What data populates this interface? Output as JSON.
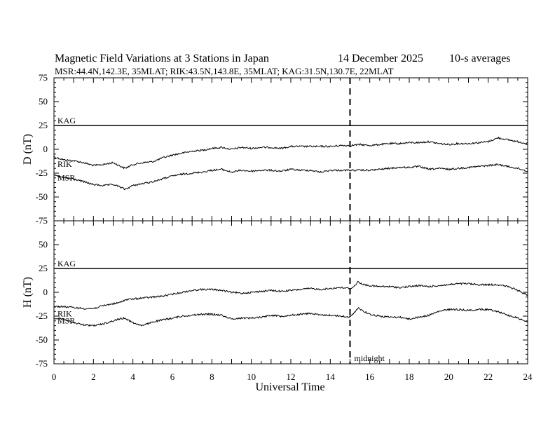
{
  "header": {
    "title": "Magnetic Field Variations at 3 Stations in Japan",
    "date_day_month": "14 December",
    "date_year": "2025",
    "averaging": "10-s averages",
    "stations_line": "MSR:44.4N,142.3E, 35MLAT;  RIK:43.5N,143.8E, 35MLAT;  KAG:31.5N,130.7E, 22MLAT"
  },
  "chart_data": [
    {
      "type": "line",
      "panel": "D",
      "ylabel": "D (nT)",
      "ylim": [
        -75,
        75
      ],
      "yticks": [
        "75",
        "50",
        "25",
        "0",
        "-25",
        "-50",
        "-75"
      ],
      "xlim": [
        0,
        24
      ],
      "series": [
        {
          "name": "KAG",
          "x": [
            0,
            24
          ],
          "values": [
            25,
            25
          ]
        },
        {
          "name": "RIK",
          "x": [
            0,
            0.5,
            1,
            1.5,
            2,
            2.5,
            3,
            3.3,
            3.6,
            4,
            4.5,
            5,
            5.5,
            6,
            6.5,
            7,
            7.5,
            8,
            8.5,
            9,
            9.5,
            10,
            10.5,
            11,
            11.5,
            12,
            12.5,
            13,
            13.5,
            14,
            14.5,
            15,
            15.5,
            16,
            16.5,
            17,
            17.5,
            18,
            18.5,
            19,
            19.5,
            20,
            20.5,
            21,
            21.5,
            22,
            22.5,
            23,
            23.5,
            24
          ],
          "values": [
            -8,
            -11,
            -12,
            -14,
            -17,
            -16,
            -14,
            -17,
            -20,
            -16,
            -14,
            -13,
            -9,
            -6,
            -4,
            -2,
            -1,
            1,
            2,
            0,
            2,
            1,
            2,
            2,
            1,
            3,
            3,
            3,
            3,
            3,
            4,
            4,
            5,
            4,
            5,
            6,
            6,
            7,
            7,
            8,
            6,
            5,
            6,
            6,
            7,
            8,
            12,
            10,
            8,
            6
          ]
        },
        {
          "name": "MSR",
          "x": [
            0,
            0.5,
            1,
            1.5,
            2,
            2.5,
            3,
            3.3,
            3.6,
            4,
            4.5,
            5,
            5.5,
            6,
            6.5,
            7,
            7.5,
            8,
            8.5,
            9,
            9.5,
            10,
            10.5,
            11,
            11.5,
            12,
            12.5,
            13,
            13.5,
            14,
            14.5,
            15,
            15.5,
            16,
            16.5,
            17,
            17.5,
            18,
            18.5,
            19,
            19.5,
            20,
            20.5,
            21,
            21.5,
            22,
            22.5,
            23,
            23.5,
            24
          ],
          "values": [
            -27,
            -30,
            -31,
            -34,
            -37,
            -38,
            -37,
            -39,
            -42,
            -38,
            -36,
            -34,
            -31,
            -28,
            -26,
            -25,
            -24,
            -22,
            -21,
            -24,
            -22,
            -23,
            -22,
            -22,
            -23,
            -21,
            -22,
            -22,
            -24,
            -22,
            -22,
            -22,
            -22,
            -22,
            -21,
            -20,
            -19,
            -19,
            -18,
            -21,
            -20,
            -21,
            -20,
            -19,
            -18,
            -17,
            -16,
            -18,
            -20,
            -23
          ]
        }
      ]
    },
    {
      "type": "line",
      "panel": "H",
      "ylabel": "H (nT)",
      "ylim": [
        -75,
        75
      ],
      "yticks": [
        "75",
        "50",
        "25",
        "0",
        "-25",
        "-50",
        "-75"
      ],
      "xlim": [
        0,
        24
      ],
      "xticks": [
        "0",
        "2",
        "4",
        "6",
        "8",
        "10",
        "12",
        "14",
        "16",
        "18",
        "20",
        "22",
        "24"
      ],
      "xlabel": "Universal Time",
      "series": [
        {
          "name": "KAG",
          "x": [
            0,
            24
          ],
          "values": [
            25,
            25
          ]
        },
        {
          "name": "RIK",
          "x": [
            0,
            0.5,
            1,
            1.5,
            2,
            2.5,
            3,
            3.3,
            3.6,
            4,
            4.5,
            5,
            5.5,
            6,
            6.5,
            7,
            7.5,
            8,
            8.5,
            9,
            9.5,
            10,
            10.5,
            11,
            11.5,
            12,
            12.5,
            13,
            13.5,
            14,
            14.5,
            15,
            15.2,
            15.4,
            15.7,
            16,
            16.5,
            17,
            17.5,
            18,
            18.5,
            19,
            19.5,
            20,
            20.5,
            21,
            21.5,
            22,
            22.5,
            23,
            23.5,
            24
          ],
          "values": [
            -15,
            -15,
            -16,
            -17,
            -17,
            -14,
            -12,
            -11,
            -8,
            -7,
            -6,
            -5,
            -4,
            -2,
            0,
            2,
            3,
            3,
            2,
            0,
            -1,
            0,
            1,
            2,
            1,
            2,
            3,
            4,
            3,
            4,
            5,
            4,
            6,
            11,
            8,
            7,
            6,
            6,
            5,
            6,
            7,
            6,
            7,
            8,
            9,
            9,
            8,
            8,
            8,
            6,
            2,
            -3
          ]
        },
        {
          "name": "MSR",
          "x": [
            0,
            0.5,
            1,
            1.5,
            2,
            2.5,
            3,
            3.3,
            3.6,
            4,
            4.5,
            5,
            5.5,
            6,
            6.5,
            7,
            7.5,
            8,
            8.5,
            9,
            9.5,
            10,
            10.5,
            11,
            11.5,
            12,
            12.5,
            13,
            13.5,
            14,
            14.5,
            15,
            15.2,
            15.4,
            15.7,
            16,
            16.5,
            17,
            17.5,
            18,
            18.5,
            19,
            19.5,
            20,
            20.5,
            21,
            21.5,
            22,
            22.5,
            23,
            23.5,
            24
          ],
          "values": [
            -27,
            -28,
            -32,
            -34,
            -35,
            -33,
            -30,
            -28,
            -27,
            -32,
            -35,
            -31,
            -29,
            -27,
            -25,
            -24,
            -23,
            -23,
            -24,
            -28,
            -27,
            -27,
            -26,
            -24,
            -25,
            -24,
            -23,
            -22,
            -24,
            -24,
            -25,
            -26,
            -22,
            -16,
            -20,
            -23,
            -25,
            -26,
            -26,
            -28,
            -26,
            -24,
            -20,
            -18,
            -18,
            -19,
            -18,
            -18,
            -20,
            -24,
            -27,
            -31
          ]
        }
      ]
    }
  ],
  "annotations": {
    "midnight_label": "midnight",
    "midnight_ut": 15
  },
  "colors": {
    "line": "#000000",
    "background": "#ffffff"
  }
}
